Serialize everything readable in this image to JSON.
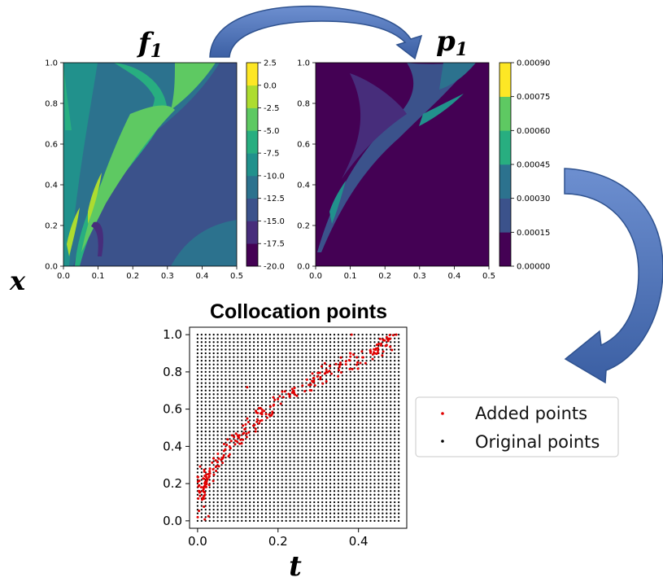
{
  "chart_data": [
    {
      "id": "f1",
      "type": "heatmap",
      "title_var": "f",
      "title_sub": "1",
      "xlabel": "x",
      "xlim": [
        0,
        0.5
      ],
      "ylim": [
        0,
        1.0
      ],
      "xticks": [
        "0.0",
        "0.1",
        "0.2",
        "0.3",
        "0.4",
        "0.5"
      ],
      "yticks": [
        "0.0",
        "0.2",
        "0.4",
        "0.6",
        "0.8",
        "1.0"
      ],
      "colorbar_ticks": [
        "2.5",
        "0.0",
        "-2.5",
        "-5.0",
        "-7.5",
        "-10.0",
        "-12.5",
        "-15.0",
        "-17.5",
        "-20.0"
      ],
      "colorbar_levels": 9,
      "colorbar_range": [
        -20.0,
        2.5
      ]
    },
    {
      "id": "p1",
      "type": "heatmap",
      "title_var": "p",
      "title_sub": "1",
      "xlim": [
        0,
        0.5
      ],
      "ylim": [
        0,
        1.0
      ],
      "xticks": [
        "0.0",
        "0.1",
        "0.2",
        "0.3",
        "0.4",
        "0.5"
      ],
      "yticks": [
        "0.0",
        "0.2",
        "0.4",
        "0.6",
        "0.8",
        "1.0"
      ],
      "colorbar_ticks": [
        "0.00090",
        "0.00075",
        "0.00060",
        "0.00045",
        "0.00030",
        "0.00015",
        "0.00000"
      ],
      "colorbar_levels": 6,
      "colorbar_range": [
        0,
        0.0009
      ]
    },
    {
      "id": "collocation",
      "type": "scatter",
      "title": "Collocation points",
      "xlabel": "t",
      "xlim": [
        -0.02,
        0.52
      ],
      "ylim": [
        -0.04,
        1.04
      ],
      "xticks": [
        "0.0",
        "0.2",
        "0.4"
      ],
      "yticks": [
        "0.0",
        "0.2",
        "0.4",
        "0.6",
        "0.8",
        "1.0"
      ],
      "legend": [
        "Added points",
        "Original points"
      ],
      "legend_position": "right",
      "original_grid": {
        "nx": 51,
        "ny": 51,
        "x_range": [
          0,
          0.5
        ],
        "y_range": [
          0,
          1.0
        ]
      },
      "added_band": {
        "count": 260,
        "centerline": [
          [
            0.0,
            0.12
          ],
          [
            0.05,
            0.33
          ],
          [
            0.1,
            0.45
          ],
          [
            0.15,
            0.55
          ],
          [
            0.2,
            0.62
          ],
          [
            0.3,
            0.78
          ],
          [
            0.4,
            0.88
          ],
          [
            0.5,
            0.98
          ]
        ]
      }
    }
  ],
  "colors": {
    "viridis": [
      "#440154",
      "#472d7b",
      "#3b528b",
      "#2c728e",
      "#21918c",
      "#28ae80",
      "#5ec962",
      "#addc30",
      "#fde725"
    ],
    "added": "#e00000",
    "original": "#000000",
    "arrow_fill": "#4472c4",
    "arrow_stroke": "#2f528f"
  },
  "icons": [
    "curved-arrow",
    "curved-arrow"
  ]
}
